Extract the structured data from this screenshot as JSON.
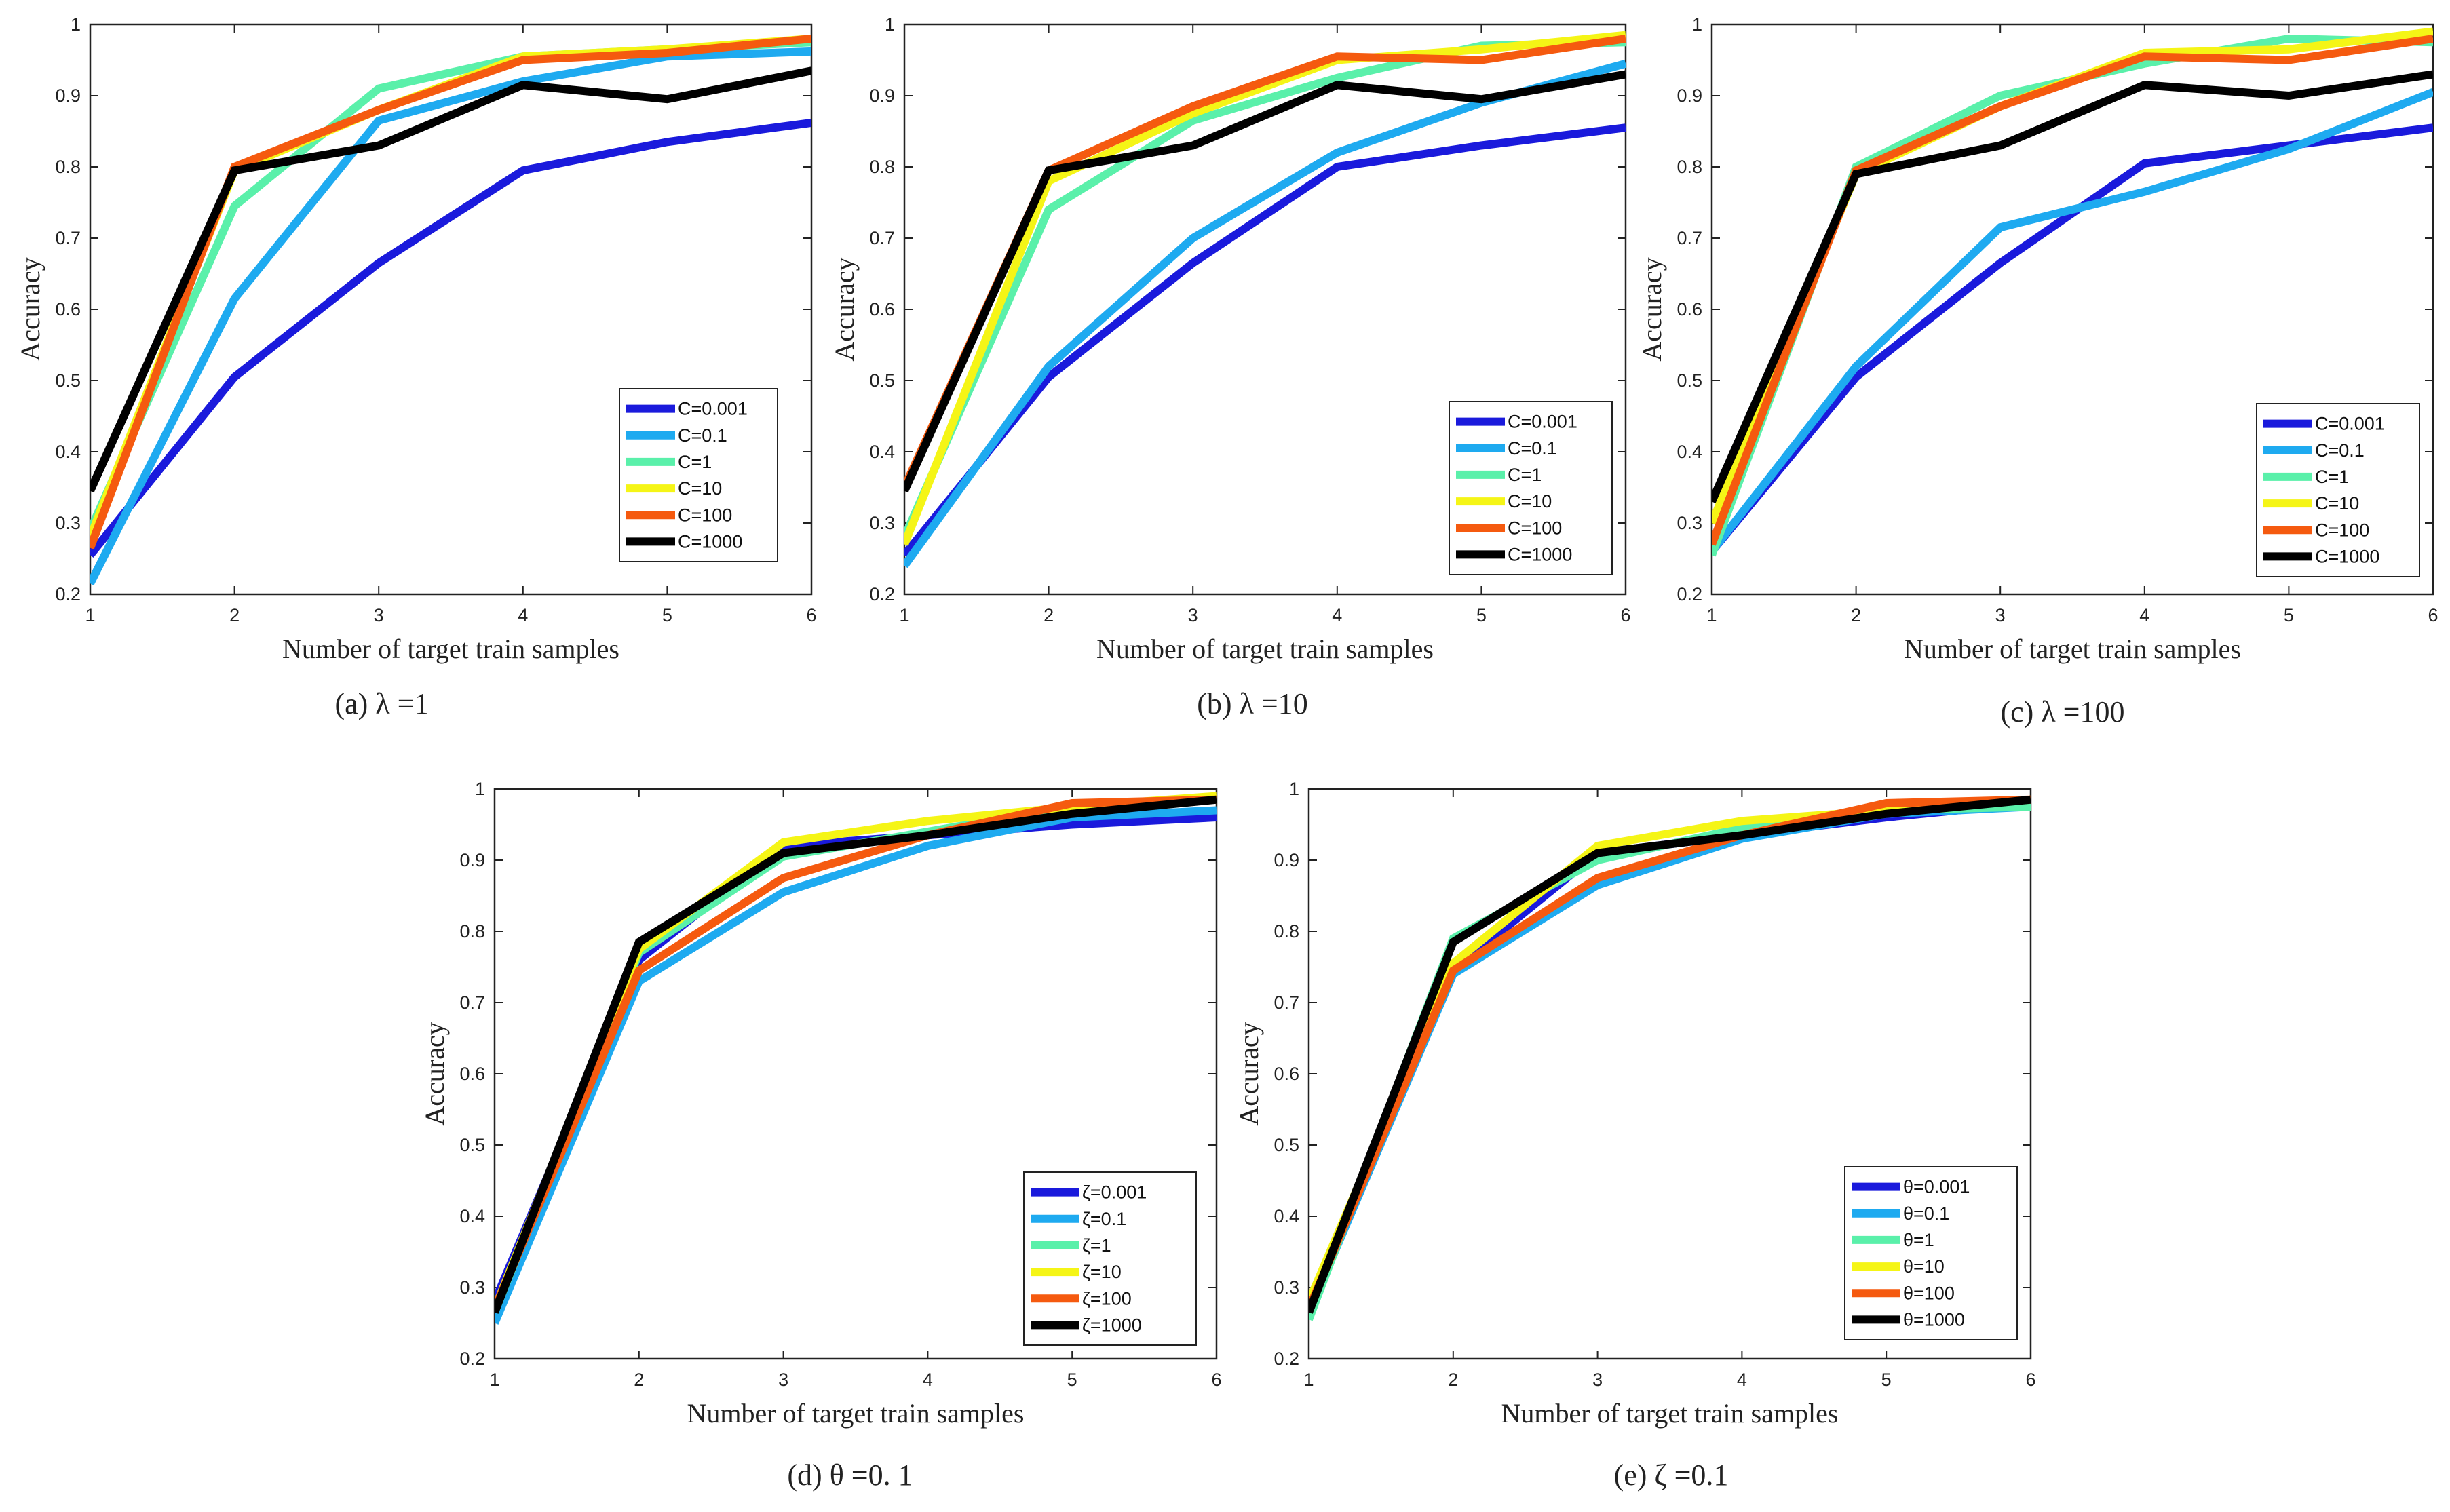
{
  "chart_data": [
    {
      "type": "line",
      "caption": "(a)  λ =1",
      "xlabel": "Number of target train samples",
      "ylabel": "Accuracy",
      "x": [
        1,
        2,
        3,
        4,
        5,
        6
      ],
      "xlim": [
        1,
        6
      ],
      "ylim": [
        0.2,
        1
      ],
      "xticks": [
        "1",
        "2",
        "3",
        "4",
        "5",
        "6"
      ],
      "yticks": [
        "0.2",
        "0.3",
        "0.4",
        "0.5",
        "0.6",
        "0.7",
        "0.8",
        "0.9",
        "1"
      ],
      "legend_position": "bottom-right",
      "series": [
        {
          "name": "C=0.001",
          "color": "#1a1adc",
          "values": [
            0.255,
            0.505,
            0.665,
            0.795,
            0.835,
            0.862
          ]
        },
        {
          "name": "C=0.1",
          "color": "#1eaaf0",
          "values": [
            0.215,
            0.615,
            0.865,
            0.92,
            0.955,
            0.962
          ]
        },
        {
          "name": "C=1",
          "color": "#5af0aa",
          "values": [
            0.29,
            0.745,
            0.91,
            0.955,
            0.965,
            0.975
          ]
        },
        {
          "name": "C=10",
          "color": "#f5f516",
          "values": [
            0.28,
            0.795,
            0.88,
            0.955,
            0.965,
            0.98
          ]
        },
        {
          "name": "C=100",
          "color": "#f55a0f",
          "values": [
            0.265,
            0.8,
            0.88,
            0.95,
            0.96,
            0.98
          ]
        },
        {
          "name": "C=1000",
          "color": "#000000",
          "values": [
            0.345,
            0.795,
            0.83,
            0.915,
            0.895,
            0.935
          ]
        }
      ]
    },
    {
      "type": "line",
      "caption": "(b)  λ =10",
      "xlabel": "Number of target train samples",
      "ylabel": "Accuracy",
      "x": [
        1,
        2,
        3,
        4,
        5,
        6
      ],
      "xlim": [
        1,
        6
      ],
      "ylim": [
        0.2,
        1
      ],
      "xticks": [
        "1",
        "2",
        "3",
        "4",
        "5",
        "6"
      ],
      "yticks": [
        "0.2",
        "0.3",
        "0.4",
        "0.5",
        "0.6",
        "0.7",
        "0.8",
        "0.9",
        "1"
      ],
      "legend_position": "bottom-right",
      "series": [
        {
          "name": "C=0.001",
          "color": "#1a1adc",
          "values": [
            0.255,
            0.505,
            0.665,
            0.8,
            0.83,
            0.855
          ]
        },
        {
          "name": "C=0.1",
          "color": "#1eaaf0",
          "values": [
            0.24,
            0.52,
            0.7,
            0.82,
            0.89,
            0.945
          ]
        },
        {
          "name": "C=1",
          "color": "#5af0aa",
          "values": [
            0.28,
            0.74,
            0.865,
            0.925,
            0.97,
            0.975
          ]
        },
        {
          "name": "C=10",
          "color": "#f5f516",
          "values": [
            0.27,
            0.78,
            0.875,
            0.95,
            0.965,
            0.985
          ]
        },
        {
          "name": "C=100",
          "color": "#f55a0f",
          "values": [
            0.35,
            0.795,
            0.885,
            0.955,
            0.95,
            0.98
          ]
        },
        {
          "name": "C=1000",
          "color": "#000000",
          "values": [
            0.345,
            0.795,
            0.83,
            0.915,
            0.895,
            0.93
          ]
        }
      ]
    },
    {
      "type": "line",
      "caption": "(c)  λ =100",
      "xlabel": "Number of target train samples",
      "ylabel": "Accuracy",
      "x": [
        1,
        2,
        3,
        4,
        5,
        6
      ],
      "xlim": [
        1,
        6
      ],
      "ylim": [
        0.2,
        1
      ],
      "xticks": [
        "1",
        "2",
        "3",
        "4",
        "5",
        "6"
      ],
      "yticks": [
        "0.2",
        "0.3",
        "0.4",
        "0.5",
        "0.6",
        "0.7",
        "0.8",
        "0.9",
        "1"
      ],
      "legend_position": "bottom-right",
      "series": [
        {
          "name": "C=0.001",
          "color": "#1a1adc",
          "values": [
            0.26,
            0.505,
            0.665,
            0.805,
            0.83,
            0.855
          ]
        },
        {
          "name": "C=0.1",
          "color": "#1eaaf0",
          "values": [
            0.26,
            0.52,
            0.715,
            0.765,
            0.825,
            0.905
          ]
        },
        {
          "name": "C=1",
          "color": "#5af0aa",
          "values": [
            0.255,
            0.8,
            0.9,
            0.945,
            0.98,
            0.975
          ]
        },
        {
          "name": "C=10",
          "color": "#f5f516",
          "values": [
            0.3,
            0.79,
            0.885,
            0.96,
            0.965,
            0.99
          ]
        },
        {
          "name": "C=100",
          "color": "#f55a0f",
          "values": [
            0.27,
            0.795,
            0.885,
            0.955,
            0.95,
            0.98
          ]
        },
        {
          "name": "C=1000",
          "color": "#000000",
          "values": [
            0.33,
            0.79,
            0.83,
            0.915,
            0.9,
            0.93
          ]
        }
      ]
    },
    {
      "type": "line",
      "caption": "(d)  θ =0. 1",
      "xlabel": "Number of target train samples",
      "ylabel": "Accuracy",
      "x": [
        1,
        2,
        3,
        4,
        5,
        6
      ],
      "xlim": [
        1,
        6
      ],
      "ylim": [
        0.2,
        1
      ],
      "xticks": [
        "1",
        "2",
        "3",
        "4",
        "5",
        "6"
      ],
      "yticks": [
        "0.2",
        "0.3",
        "0.4",
        "0.5",
        "0.6",
        "0.7",
        "0.8",
        "0.9",
        "1"
      ],
      "legend_position": "bottom-right",
      "series": [
        {
          "name": "ζ=0.001",
          "color": "#1a1adc",
          "values": [
            0.28,
            0.76,
            0.92,
            0.935,
            0.95,
            0.96
          ]
        },
        {
          "name": "ζ=0.1",
          "color": "#1eaaf0",
          "values": [
            0.25,
            0.73,
            0.855,
            0.92,
            0.96,
            0.97
          ]
        },
        {
          "name": "ζ=1",
          "color": "#5af0aa",
          "values": [
            0.265,
            0.77,
            0.905,
            0.94,
            0.975,
            0.985
          ]
        },
        {
          "name": "ζ=10",
          "color": "#f5f516",
          "values": [
            0.27,
            0.775,
            0.925,
            0.955,
            0.975,
            0.99
          ]
        },
        {
          "name": "ζ=100",
          "color": "#f55a0f",
          "values": [
            0.27,
            0.745,
            0.875,
            0.935,
            0.98,
            0.985
          ]
        },
        {
          "name": "ζ=1000",
          "color": "#000000",
          "values": [
            0.265,
            0.785,
            0.91,
            0.935,
            0.965,
            0.985
          ]
        }
      ]
    },
    {
      "type": "line",
      "caption": "(e)  ζ =0.1",
      "xlabel": "Number of target train samples",
      "ylabel": "Accuracy",
      "x": [
        1,
        2,
        3,
        4,
        5,
        6
      ],
      "xlim": [
        1,
        6
      ],
      "ylim": [
        0.2,
        1
      ],
      "xticks": [
        "1",
        "2",
        "3",
        "4",
        "5",
        "6"
      ],
      "yticks": [
        "0.2",
        "0.3",
        "0.4",
        "0.5",
        "0.6",
        "0.7",
        "0.8",
        "0.9",
        "1"
      ],
      "legend_position": "bottom-right",
      "series": [
        {
          "name": "θ=0.001",
          "color": "#1a1adc",
          "values": [
            0.265,
            0.745,
            0.91,
            0.935,
            0.96,
            0.98
          ]
        },
        {
          "name": "θ=0.1",
          "color": "#1eaaf0",
          "values": [
            0.265,
            0.74,
            0.865,
            0.93,
            0.965,
            0.975
          ]
        },
        {
          "name": "θ=1",
          "color": "#5af0aa",
          "values": [
            0.255,
            0.79,
            0.9,
            0.945,
            0.97,
            0.975
          ]
        },
        {
          "name": "θ=10",
          "color": "#f5f516",
          "values": [
            0.28,
            0.755,
            0.92,
            0.955,
            0.97,
            0.985
          ]
        },
        {
          "name": "θ=100",
          "color": "#f55a0f",
          "values": [
            0.27,
            0.745,
            0.875,
            0.935,
            0.98,
            0.985
          ]
        },
        {
          "name": "θ=1000",
          "color": "#000000",
          "values": [
            0.265,
            0.785,
            0.91,
            0.935,
            0.965,
            0.985
          ]
        }
      ]
    }
  ]
}
